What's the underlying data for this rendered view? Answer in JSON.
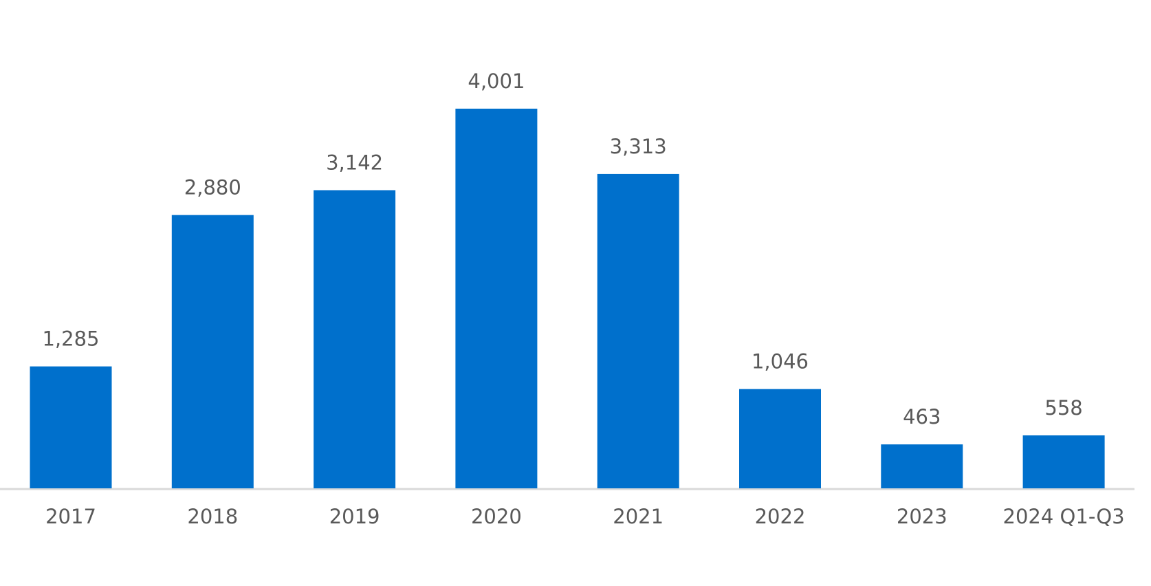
{
  "chart_data": {
    "type": "bar",
    "categories": [
      "2017",
      "2018",
      "2019",
      "2020",
      "2021",
      "2022",
      "2023",
      "2024 Q1-Q3"
    ],
    "values": [
      1285,
      2880,
      3142,
      4001,
      3313,
      1046,
      463,
      558
    ],
    "value_labels": [
      "1,285",
      "2,880",
      "3,142",
      "4,001",
      "3,313",
      "1,046",
      "463",
      "558"
    ],
    "color": "#0070cc"
  }
}
